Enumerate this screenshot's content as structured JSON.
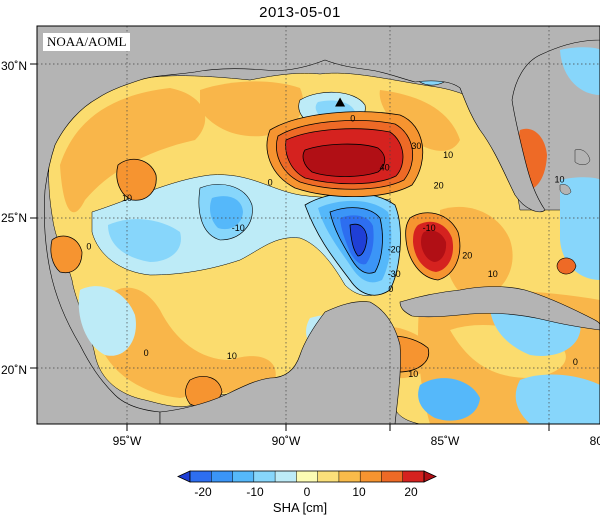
{
  "title": "2013-05-01",
  "credit": "NOAA/AOML",
  "lon_ticks": [
    {
      "lon": -95,
      "label": "95˚W"
    },
    {
      "lon": -90,
      "label": "90˚W"
    },
    {
      "lon": -85,
      "label": "85˚W"
    },
    {
      "lon": -80,
      "label": "80˚W"
    }
  ],
  "lat_ticks": [
    {
      "lat": 30,
      "label": "30˚N"
    },
    {
      "lat": 25,
      "label": "25˚N"
    },
    {
      "lat": 20,
      "label": "20˚N"
    }
  ],
  "contour_labels": [
    {
      "text": "0",
      "lon": -87.9,
      "lat": 28.2
    },
    {
      "text": "-10",
      "lon": -91.5,
      "lat": 24.6
    },
    {
      "text": "10",
      "lon": -95.0,
      "lat": 25.6
    },
    {
      "text": "0",
      "lon": -96.2,
      "lat": 24.0
    },
    {
      "text": "0",
      "lon": -90.5,
      "lat": 26.1
    },
    {
      "text": "40",
      "lon": -86.9,
      "lat": 26.6
    },
    {
      "text": "30",
      "lon": -85.9,
      "lat": 27.3
    },
    {
      "text": "20",
      "lon": -85.2,
      "lat": 26.0
    },
    {
      "text": "10",
      "lon": -84.9,
      "lat": 27.0
    },
    {
      "text": "-10",
      "lon": -85.5,
      "lat": 24.6
    },
    {
      "text": "-20",
      "lon": -86.6,
      "lat": 23.9
    },
    {
      "text": "-30",
      "lon": -86.6,
      "lat": 23.1
    },
    {
      "text": "20",
      "lon": -84.3,
      "lat": 23.7
    },
    {
      "text": "10",
      "lon": -83.5,
      "lat": 23.1
    },
    {
      "text": "0",
      "lon": -86.7,
      "lat": 22.6
    },
    {
      "text": "0",
      "lon": -94.4,
      "lat": 20.5
    },
    {
      "text": "10",
      "lon": -91.7,
      "lat": 20.4
    },
    {
      "text": "10",
      "lon": -86.0,
      "lat": 19.8
    },
    {
      "text": "0",
      "lon": -80.9,
      "lat": 20.2
    },
    {
      "text": "10",
      "lon": -81.4,
      "lat": 26.2
    }
  ],
  "marker": {
    "name": "triangle",
    "lon": -88.3,
    "lat": 28.8
  },
  "colorbar": {
    "min": -25,
    "max": 25,
    "ticks": [
      -20,
      -10,
      0,
      10,
      20
    ],
    "label": "SHA [cm]",
    "colors": [
      "#1f3fd6",
      "#2d6ef0",
      "#3b95f7",
      "#55b8fa",
      "#87d6fb",
      "#bdebf7",
      "#fcfcb4",
      "#fbe07a",
      "#f9bb4a",
      "#f69430",
      "#ee6a26",
      "#d5221f",
      "#b10f15"
    ]
  }
}
